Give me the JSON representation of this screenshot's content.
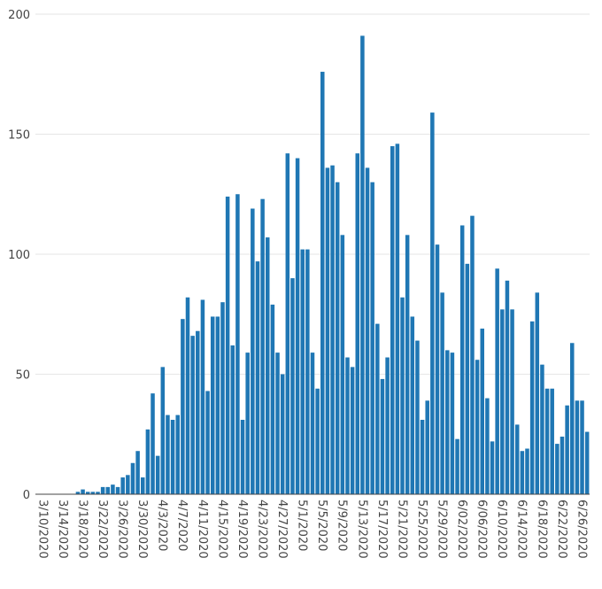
{
  "chart_data": {
    "type": "bar",
    "title": "",
    "xlabel": "",
    "ylabel": "",
    "ylim": [
      0,
      200
    ],
    "yticks": [
      0,
      50,
      100,
      150,
      200
    ],
    "bar_color": "#1f77b4",
    "grid": true,
    "x": [
      "3/10/2020",
      "3/11/2020",
      "3/12/2020",
      "3/13/2020",
      "3/14/2020",
      "3/15/2020",
      "3/16/2020",
      "3/17/2020",
      "3/18/2020",
      "3/19/2020",
      "3/20/2020",
      "3/21/2020",
      "3/22/2020",
      "3/23/2020",
      "3/24/2020",
      "3/25/2020",
      "3/26/2020",
      "3/27/2020",
      "3/28/2020",
      "3/29/2020",
      "3/30/2020",
      "3/31/2020",
      "4/1/2020",
      "4/2/2020",
      "4/3/2020",
      "4/4/2020",
      "4/5/2020",
      "4/6/2020",
      "4/7/2020",
      "4/8/2020",
      "4/9/2020",
      "4/10/2020",
      "4/11/2020",
      "4/12/2020",
      "4/13/2020",
      "4/14/2020",
      "4/15/2020",
      "4/16/2020",
      "4/17/2020",
      "4/18/2020",
      "4/19/2020",
      "4/20/2020",
      "4/21/2020",
      "4/22/2020",
      "4/23/2020",
      "4/24/2020",
      "4/25/2020",
      "4/26/2020",
      "4/27/2020",
      "4/28/2020",
      "4/29/2020",
      "4/30/2020",
      "5/1/2020",
      "5/2/2020",
      "5/3/2020",
      "5/4/2020",
      "5/5/2020",
      "5/6/2020",
      "5/7/2020",
      "5/8/2020",
      "5/9/2020",
      "5/10/2020",
      "5/11/2020",
      "5/12/2020",
      "5/13/2020",
      "5/14/2020",
      "5/15/2020",
      "5/16/2020",
      "5/17/2020",
      "5/18/2020",
      "5/19/2020",
      "5/20/2020",
      "5/21/2020",
      "5/22/2020",
      "5/23/2020",
      "5/24/2020",
      "5/25/2020",
      "5/26/2020",
      "5/27/2020",
      "5/28/2020",
      "5/29/2020",
      "5/30/2020",
      "5/31/2020",
      "6/1/2020",
      "6/2/2020",
      "6/3/2020",
      "6/4/2020",
      "6/5/2020",
      "6/6/2020",
      "6/7/2020",
      "6/8/2020",
      "6/9/2020",
      "6/10/2020",
      "6/11/2020",
      "6/12/2020",
      "6/13/2020",
      "6/14/2020",
      "6/15/2020",
      "6/16/2020",
      "6/17/2020",
      "6/18/2020",
      "6/19/2020",
      "6/20/2020",
      "6/21/2020",
      "6/22/2020",
      "6/23/2020",
      "6/24/2020",
      "6/25/2020",
      "6/26/2020",
      "6/27/2020",
      "6/28/2020"
    ],
    "values": [
      0,
      0,
      0,
      0,
      0,
      0,
      0,
      0,
      1,
      2,
      1,
      1,
      1,
      3,
      3,
      4,
      3,
      7,
      8,
      13,
      18,
      7,
      27,
      42,
      16,
      53,
      33,
      31,
      33,
      73,
      82,
      66,
      68,
      81,
      43,
      74,
      74,
      80,
      124,
      62,
      125,
      31,
      59,
      119,
      97,
      123,
      107,
      79,
      59,
      50,
      142,
      90,
      140,
      102,
      102,
      59,
      44,
      176,
      136,
      137,
      130,
      108,
      57,
      53,
      142,
      191,
      136,
      130,
      71,
      48,
      57,
      145,
      146,
      82,
      108,
      74,
      64,
      31,
      39,
      159,
      104,
      84,
      60,
      59,
      23,
      112,
      96,
      116,
      56,
      69,
      40,
      22,
      94,
      77,
      89,
      77,
      29,
      18,
      19,
      72,
      84,
      54,
      44,
      44,
      21,
      24,
      37,
      63,
      39,
      39,
      26
    ],
    "tick_labels": [
      "3/10/2020",
      "3/14/2020",
      "3/18/2020",
      "3/22/2020",
      "3/26/2020",
      "3/30/2020",
      "4/3/2020",
      "4/7/2020",
      "4/11/2020",
      "4/15/2020",
      "4/19/2020",
      "4/23/2020",
      "4/27/2020",
      "5/1/2020",
      "5/5/2020",
      "5/9/2020",
      "5/13/2020",
      "5/17/2020",
      "5/21/2020",
      "5/25/2020",
      "5/29/2020",
      "6/02/2020",
      "6/06/2020",
      "6/10/2020",
      "6/14/2020",
      "6/18/2020",
      "6/22/2020",
      "6/26/2020"
    ],
    "tick_every": 4
  }
}
